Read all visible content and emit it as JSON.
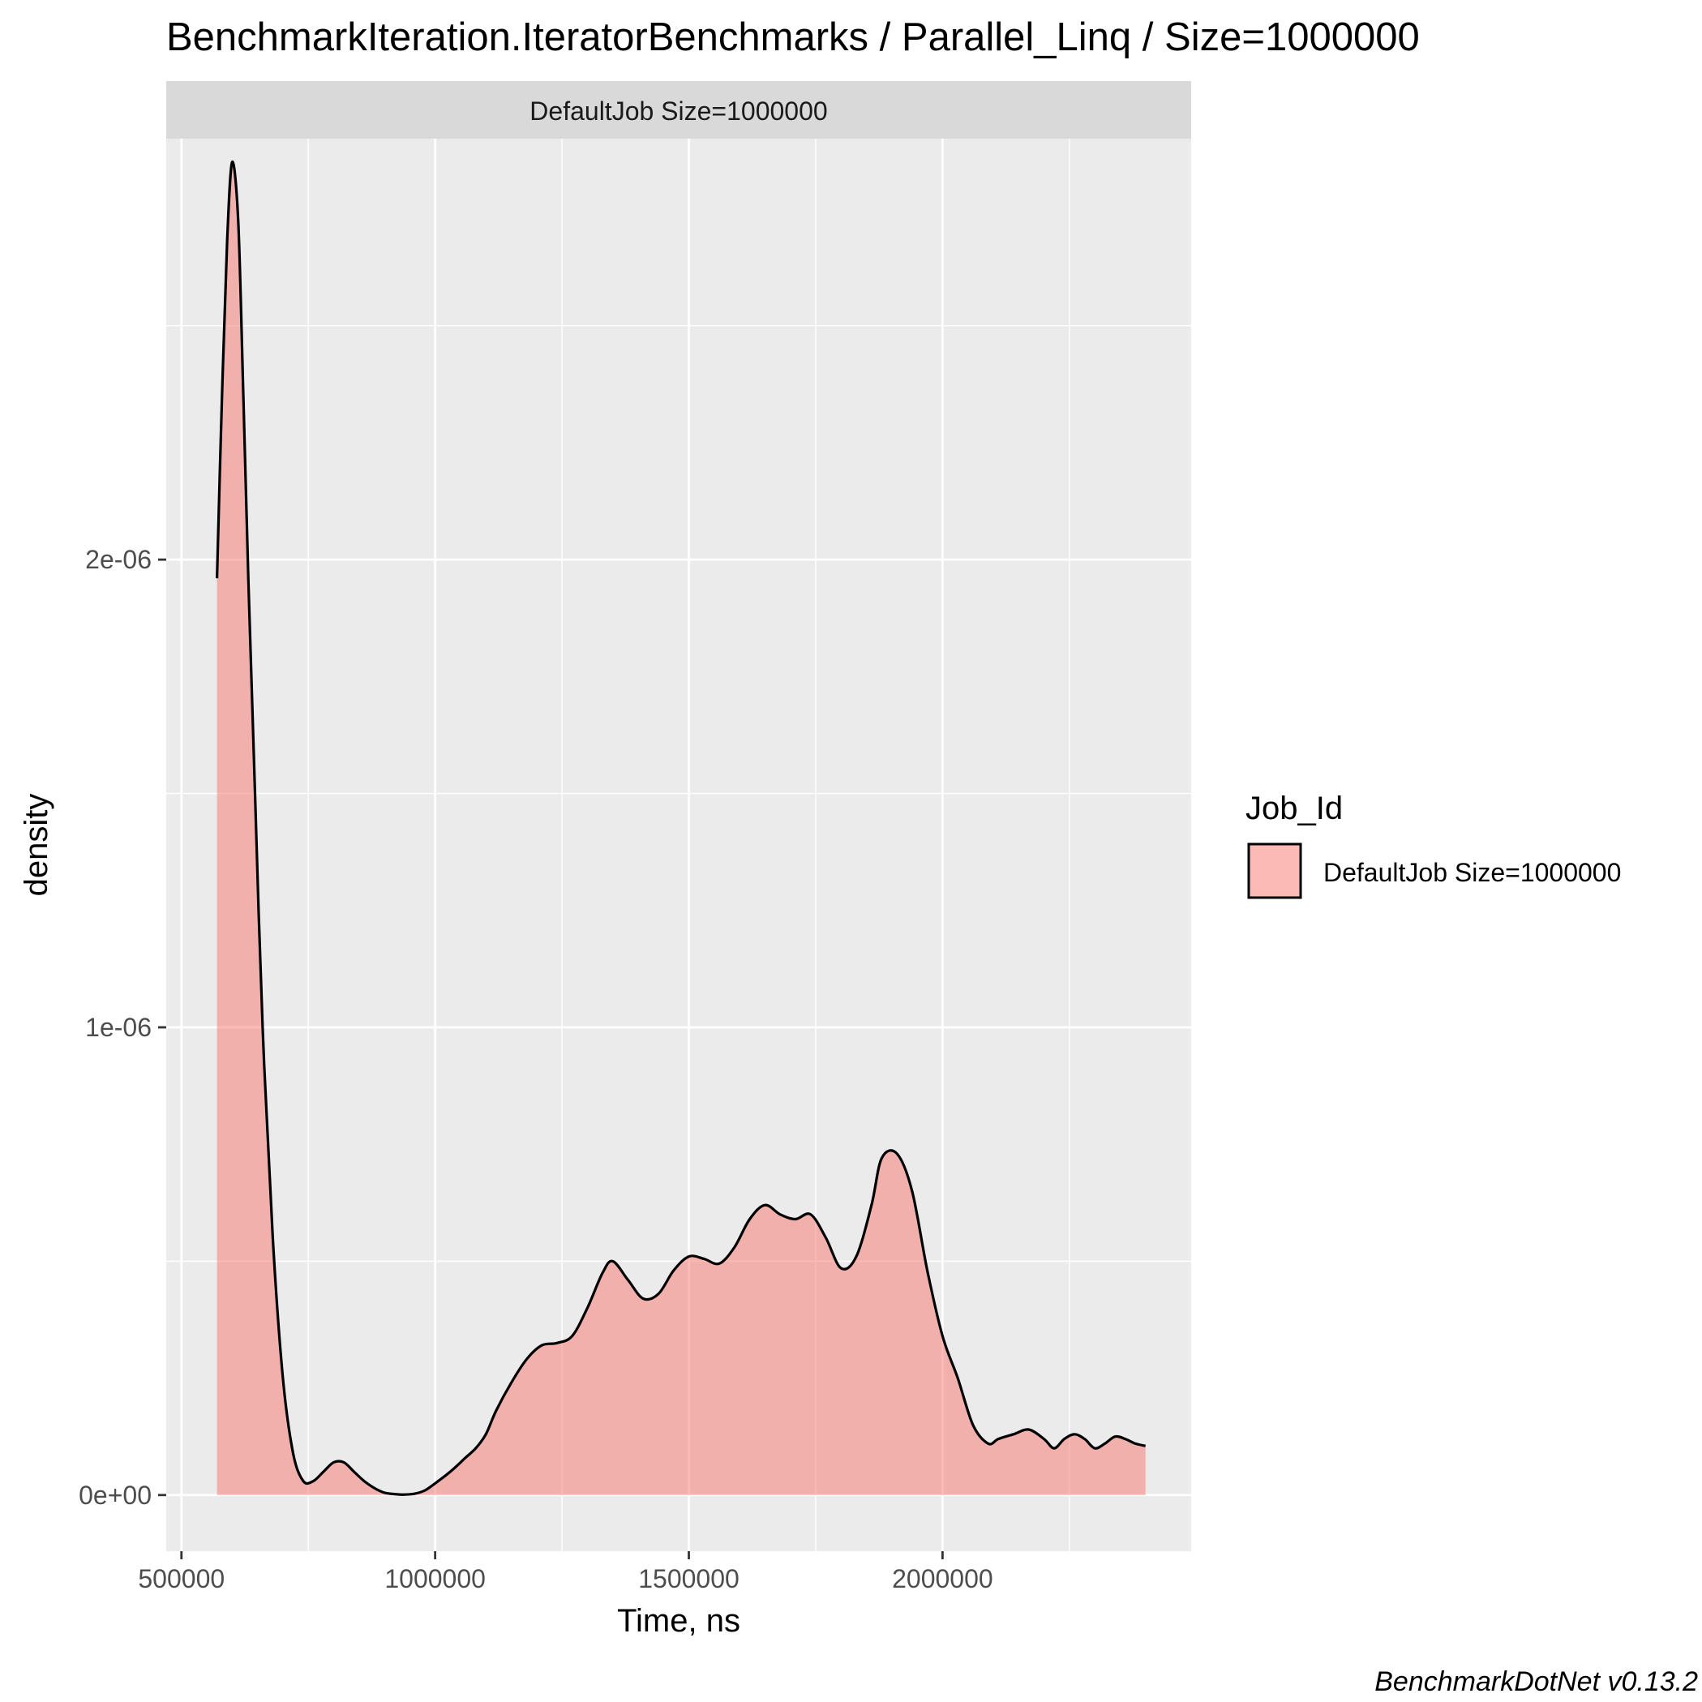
{
  "chart_data": {
    "type": "area",
    "title": "BenchmarkIteration.IteratorBenchmarks / Parallel_Linq / Size=1000000",
    "facet_label": "DefaultJob Size=1000000",
    "xlabel": "Time, ns",
    "ylabel": "density",
    "xlim": [
      470000,
      2490000
    ],
    "ylim": [
      -1.2e-07,
      2.9e-06
    ],
    "x_ticks": [
      500000,
      1000000,
      1500000,
      2000000
    ],
    "x_tick_labels": [
      "500000",
      "1000000",
      "1500000",
      "2000000"
    ],
    "y_ticks": [
      0,
      1e-06,
      2e-06
    ],
    "y_tick_labels": [
      "0e+00",
      "1e-06",
      "2e-06"
    ],
    "grid": true,
    "legend": {
      "title": "Job_Id",
      "position": "right",
      "entries": [
        "DefaultJob Size=1000000"
      ]
    },
    "colors": {
      "fill": "#F8766D",
      "fill_opacity": 0.5,
      "outline": "#000000",
      "panel_bg": "#EBEBEB",
      "strip_bg": "#D9D9D9",
      "grid_major": "#FFFFFF"
    },
    "series": [
      {
        "name": "DefaultJob Size=1000000",
        "x": [
          570000,
          580000,
          590000,
          600000,
          612000,
          622000,
          632000,
          645000,
          660000,
          680000,
          700000,
          720000,
          740000,
          760000,
          780000,
          800000,
          820000,
          840000,
          860000,
          880000,
          900000,
          920000,
          940000,
          960000,
          980000,
          1000000,
          1030000,
          1060000,
          1080000,
          1100000,
          1120000,
          1150000,
          1180000,
          1210000,
          1240000,
          1270000,
          1300000,
          1330000,
          1350000,
          1380000,
          1410000,
          1440000,
          1470000,
          1500000,
          1530000,
          1560000,
          1590000,
          1620000,
          1650000,
          1680000,
          1710000,
          1740000,
          1770000,
          1800000,
          1830000,
          1860000,
          1880000,
          1910000,
          1940000,
          1970000,
          2000000,
          2030000,
          2060000,
          2090000,
          2110000,
          2140000,
          2170000,
          2200000,
          2220000,
          2240000,
          2260000,
          2280000,
          2300000,
          2320000,
          2340000,
          2360000,
          2380000,
          2400000
        ],
        "y": [
          1.96e-06,
          2.35e-06,
          2.68e-06,
          2.85e-06,
          2.72e-06,
          2.35e-06,
          1.95e-06,
          1.5e-06,
          1e-06,
          5.5e-07,
          2.5e-07,
          9e-08,
          3e-08,
          3e-08,
          5e-08,
          7e-08,
          7e-08,
          5e-08,
          3e-08,
          1.5e-08,
          5e-09,
          2e-09,
          1e-09,
          3e-09,
          1e-08,
          2.5e-08,
          5e-08,
          8e-08,
          1e-07,
          1.3e-07,
          1.8e-07,
          2.4e-07,
          2.9e-07,
          3.2e-07,
          3.25e-07,
          3.4e-07,
          4e-07,
          4.75e-07,
          5e-07,
          4.6e-07,
          4.2e-07,
          4.3e-07,
          4.8e-07,
          5.1e-07,
          5.05e-07,
          4.95e-07,
          5.3e-07,
          5.9e-07,
          6.2e-07,
          6e-07,
          5.9e-07,
          6e-07,
          5.5e-07,
          4.85e-07,
          5.1e-07,
          6.2e-07,
          7.2e-07,
          7.3e-07,
          6.5e-07,
          4.8e-07,
          3.4e-07,
          2.5e-07,
          1.5e-07,
          1.1e-07,
          1.2e-07,
          1.3e-07,
          1.4e-07,
          1.2e-07,
          1e-07,
          1.2e-07,
          1.3e-07,
          1.2e-07,
          1e-07,
          1.1e-07,
          1.25e-07,
          1.2e-07,
          1.1e-07,
          1.05e-07
        ]
      }
    ]
  },
  "caption": "BenchmarkDotNet v0.13.2"
}
